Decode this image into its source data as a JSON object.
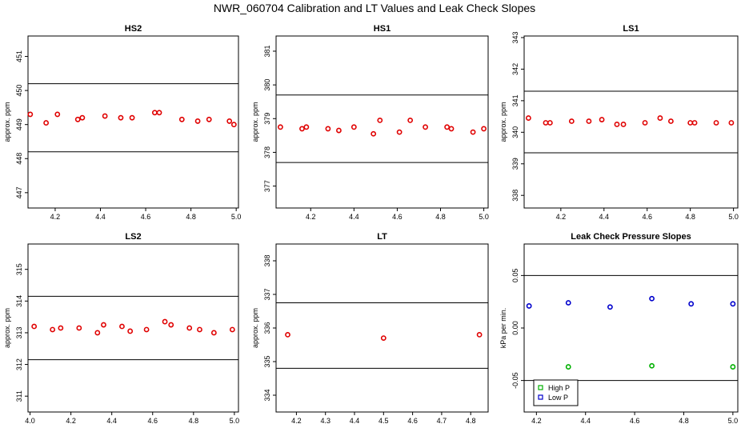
{
  "page_title": "NWR_060704  Calibration and LT Values and Leak Check Slopes",
  "chart_data": [
    {
      "id": "hs2",
      "type": "scatter",
      "title": "HS2",
      "ylabel": "approx. ppm",
      "xlim": [
        4.08,
        5.01
      ],
      "ylim": [
        446.55,
        451.6
      ],
      "xticks": [
        4.2,
        4.4,
        4.6,
        4.8,
        5.0
      ],
      "xtick_labels": [
        "4.2",
        "4.4",
        "4.6",
        "4.8",
        "5.0"
      ],
      "yticks": [
        447,
        448,
        449,
        450,
        451
      ],
      "ytick_labels": [
        "447",
        "448",
        "449",
        "450",
        "451"
      ],
      "hlines": [
        450.2,
        448.2
      ],
      "series": [
        {
          "color": "#e00000",
          "points": [
            [
              4.09,
              449.3
            ],
            [
              4.16,
              449.05
            ],
            [
              4.21,
              449.3
            ],
            [
              4.3,
              449.15
            ],
            [
              4.32,
              449.2
            ],
            [
              4.42,
              449.25
            ],
            [
              4.49,
              449.2
            ],
            [
              4.54,
              449.2
            ],
            [
              4.64,
              449.35
            ],
            [
              4.66,
              449.35
            ],
            [
              4.76,
              449.15
            ],
            [
              4.83,
              449.1
            ],
            [
              4.88,
              449.15
            ],
            [
              4.97,
              449.1
            ],
            [
              4.99,
              449.0
            ]
          ]
        }
      ]
    },
    {
      "id": "hs1",
      "type": "scatter",
      "title": "HS1",
      "ylabel": "approx. ppm",
      "xlim": [
        4.04,
        5.02
      ],
      "ylim": [
        376.35,
        381.45
      ],
      "xticks": [
        4.2,
        4.4,
        4.6,
        4.8,
        5.0
      ],
      "xtick_labels": [
        "4.2",
        "4.4",
        "4.6",
        "4.8",
        "5.0"
      ],
      "yticks": [
        377,
        378,
        379,
        380,
        381
      ],
      "ytick_labels": [
        "377",
        "378",
        "379",
        "380",
        "381"
      ],
      "hlines": [
        379.7,
        377.7
      ],
      "series": [
        {
          "color": "#e00000",
          "points": [
            [
              4.06,
              378.75
            ],
            [
              4.16,
              378.7
            ],
            [
              4.18,
              378.75
            ],
            [
              4.28,
              378.7
            ],
            [
              4.33,
              378.65
            ],
            [
              4.4,
              378.75
            ],
            [
              4.49,
              378.55
            ],
            [
              4.52,
              378.95
            ],
            [
              4.61,
              378.6
            ],
            [
              4.66,
              378.95
            ],
            [
              4.73,
              378.75
            ],
            [
              4.83,
              378.75
            ],
            [
              4.85,
              378.7
            ],
            [
              4.95,
              378.6
            ],
            [
              5.0,
              378.7
            ]
          ]
        }
      ]
    },
    {
      "id": "ls1",
      "type": "scatter",
      "title": "LS1",
      "ylabel": "approx. ppm",
      "xlim": [
        4.03,
        5.02
      ],
      "ylim": [
        337.6,
        343.05
      ],
      "xticks": [
        4.2,
        4.4,
        4.6,
        4.8,
        5.0
      ],
      "xtick_labels": [
        "4.2",
        "4.4",
        "4.6",
        "4.8",
        "5.0"
      ],
      "yticks": [
        338,
        339,
        340,
        341,
        342,
        343
      ],
      "ytick_labels": [
        "338",
        "339",
        "340",
        "341",
        "342",
        "343"
      ],
      "hlines": [
        341.3,
        339.35
      ],
      "series": [
        {
          "color": "#e00000",
          "points": [
            [
              4.05,
              340.45
            ],
            [
              4.13,
              340.3
            ],
            [
              4.15,
              340.3
            ],
            [
              4.25,
              340.35
            ],
            [
              4.33,
              340.35
            ],
            [
              4.39,
              340.4
            ],
            [
              4.46,
              340.25
            ],
            [
              4.49,
              340.25
            ],
            [
              4.59,
              340.3
            ],
            [
              4.66,
              340.45
            ],
            [
              4.71,
              340.35
            ],
            [
              4.8,
              340.3
            ],
            [
              4.82,
              340.3
            ],
            [
              4.92,
              340.3
            ],
            [
              4.99,
              340.3
            ]
          ]
        }
      ]
    },
    {
      "id": "ls2",
      "type": "scatter",
      "title": "LS2",
      "ylabel": "approx. ppm",
      "xlim": [
        3.99,
        5.02
      ],
      "ylim": [
        310.5,
        315.8
      ],
      "xticks": [
        4.0,
        4.2,
        4.4,
        4.6,
        4.8,
        5.0
      ],
      "xtick_labels": [
        "4.0",
        "4.2",
        "4.4",
        "4.6",
        "4.8",
        "5.0"
      ],
      "yticks": [
        311,
        312,
        313,
        314,
        315
      ],
      "ytick_labels": [
        "311",
        "312",
        "313",
        "314",
        "315"
      ],
      "hlines": [
        314.15,
        312.15
      ],
      "series": [
        {
          "color": "#e00000",
          "points": [
            [
              4.02,
              313.2
            ],
            [
              4.11,
              313.1
            ],
            [
              4.15,
              313.15
            ],
            [
              4.24,
              313.15
            ],
            [
              4.33,
              313.0
            ],
            [
              4.36,
              313.25
            ],
            [
              4.45,
              313.2
            ],
            [
              4.49,
              313.05
            ],
            [
              4.57,
              313.1
            ],
            [
              4.66,
              313.35
            ],
            [
              4.69,
              313.25
            ],
            [
              4.78,
              313.15
            ],
            [
              4.83,
              313.1
            ],
            [
              4.9,
              313.0
            ],
            [
              4.99,
              313.1
            ]
          ]
        }
      ]
    },
    {
      "id": "lt",
      "type": "scatter",
      "title": "LT",
      "ylabel": "approx. ppm",
      "xlim": [
        4.13,
        4.86
      ],
      "ylim": [
        333.5,
        338.5
      ],
      "xticks": [
        4.2,
        4.3,
        4.4,
        4.5,
        4.6,
        4.7,
        4.8
      ],
      "xtick_labels": [
        "4.2",
        "4.3",
        "4.4",
        "4.5",
        "4.6",
        "4.7",
        "4.8"
      ],
      "yticks": [
        334,
        335,
        336,
        337,
        338
      ],
      "ytick_labels": [
        "334",
        "335",
        "336",
        "337",
        "338"
      ],
      "hlines": [
        336.75,
        334.8
      ],
      "series": [
        {
          "color": "#e00000",
          "points": [
            [
              4.17,
              335.8
            ],
            [
              4.5,
              335.7
            ],
            [
              4.83,
              335.8
            ]
          ]
        }
      ]
    },
    {
      "id": "leak",
      "type": "scatter",
      "title": "Leak Check Pressure Slopes",
      "ylabel": "kPa per min.",
      "xlim": [
        4.15,
        5.02
      ],
      "ylim": [
        -0.08,
        0.08
      ],
      "xticks": [
        4.2,
        4.4,
        4.6,
        4.8,
        5.0
      ],
      "xtick_labels": [
        "4.2",
        "4.4",
        "4.6",
        "4.8",
        "5.0"
      ],
      "yticks": [
        -0.05,
        0.0,
        0.05
      ],
      "ytick_labels": [
        "-0.05",
        "0.00",
        "0.05"
      ],
      "hlines": [
        0.05,
        -0.05
      ],
      "legend": {
        "position": "bottom-left",
        "entries": [
          {
            "label": "High P",
            "color": "#00b000"
          },
          {
            "label": "Low P",
            "color": "#0000cc"
          }
        ]
      },
      "series": [
        {
          "name": "High P",
          "color": "#00b000",
          "points": [
            [
              4.33,
              -0.037
            ],
            [
              4.67,
              -0.036
            ],
            [
              5.0,
              -0.037
            ]
          ]
        },
        {
          "name": "Low P",
          "color": "#0000cc",
          "points": [
            [
              4.17,
              0.021
            ],
            [
              4.33,
              0.024
            ],
            [
              4.5,
              0.02
            ],
            [
              4.67,
              0.028
            ],
            [
              4.83,
              0.023
            ],
            [
              5.0,
              0.023
            ]
          ]
        }
      ]
    }
  ]
}
